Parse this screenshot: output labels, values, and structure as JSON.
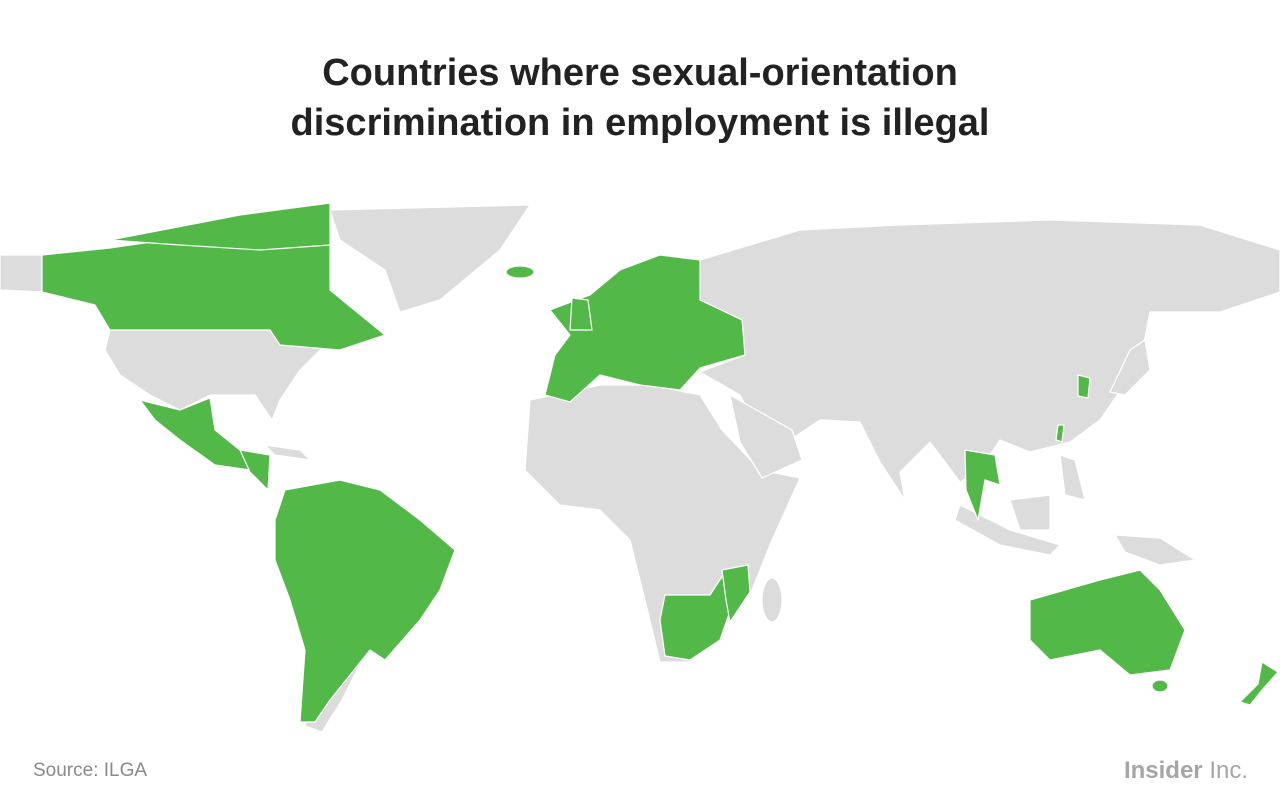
{
  "title": {
    "line1": "Countries where sexual-orientation",
    "line2": "discrimination in employment is illegal"
  },
  "map": {
    "highlight_color": "#52b848",
    "base_color": "#dcdcdc",
    "border_color": "#ffffff"
  },
  "source": "Source: ILGA",
  "logo": {
    "bold": "Insider",
    "regular": "Inc."
  }
}
